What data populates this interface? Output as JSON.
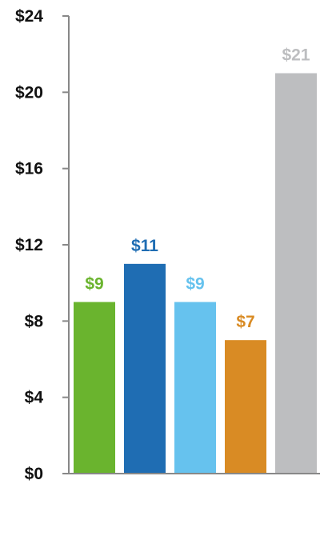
{
  "chart_data": {
    "type": "bar",
    "title": "",
    "xlabel": "",
    "ylabel": "",
    "ylim": [
      0,
      24
    ],
    "yticks": [
      0,
      4,
      8,
      12,
      16,
      20,
      24
    ],
    "ytick_labels": [
      "$0",
      "$4",
      "$8",
      "$12",
      "$16",
      "$20",
      "$24"
    ],
    "grid": false,
    "bars": [
      {
        "value": 9,
        "label": "$9",
        "color": "#6ab42e"
      },
      {
        "value": 11,
        "label": "$11",
        "color": "#1f6db3"
      },
      {
        "value": 9,
        "label": "$9",
        "color": "#66c2ee"
      },
      {
        "value": 7,
        "label": "$7",
        "color": "#d98b24"
      },
      {
        "value": 21,
        "label": "$21",
        "color": "#bdbec0"
      }
    ],
    "colors": {
      "axis": "#888888",
      "tick_text": "#111111"
    }
  }
}
